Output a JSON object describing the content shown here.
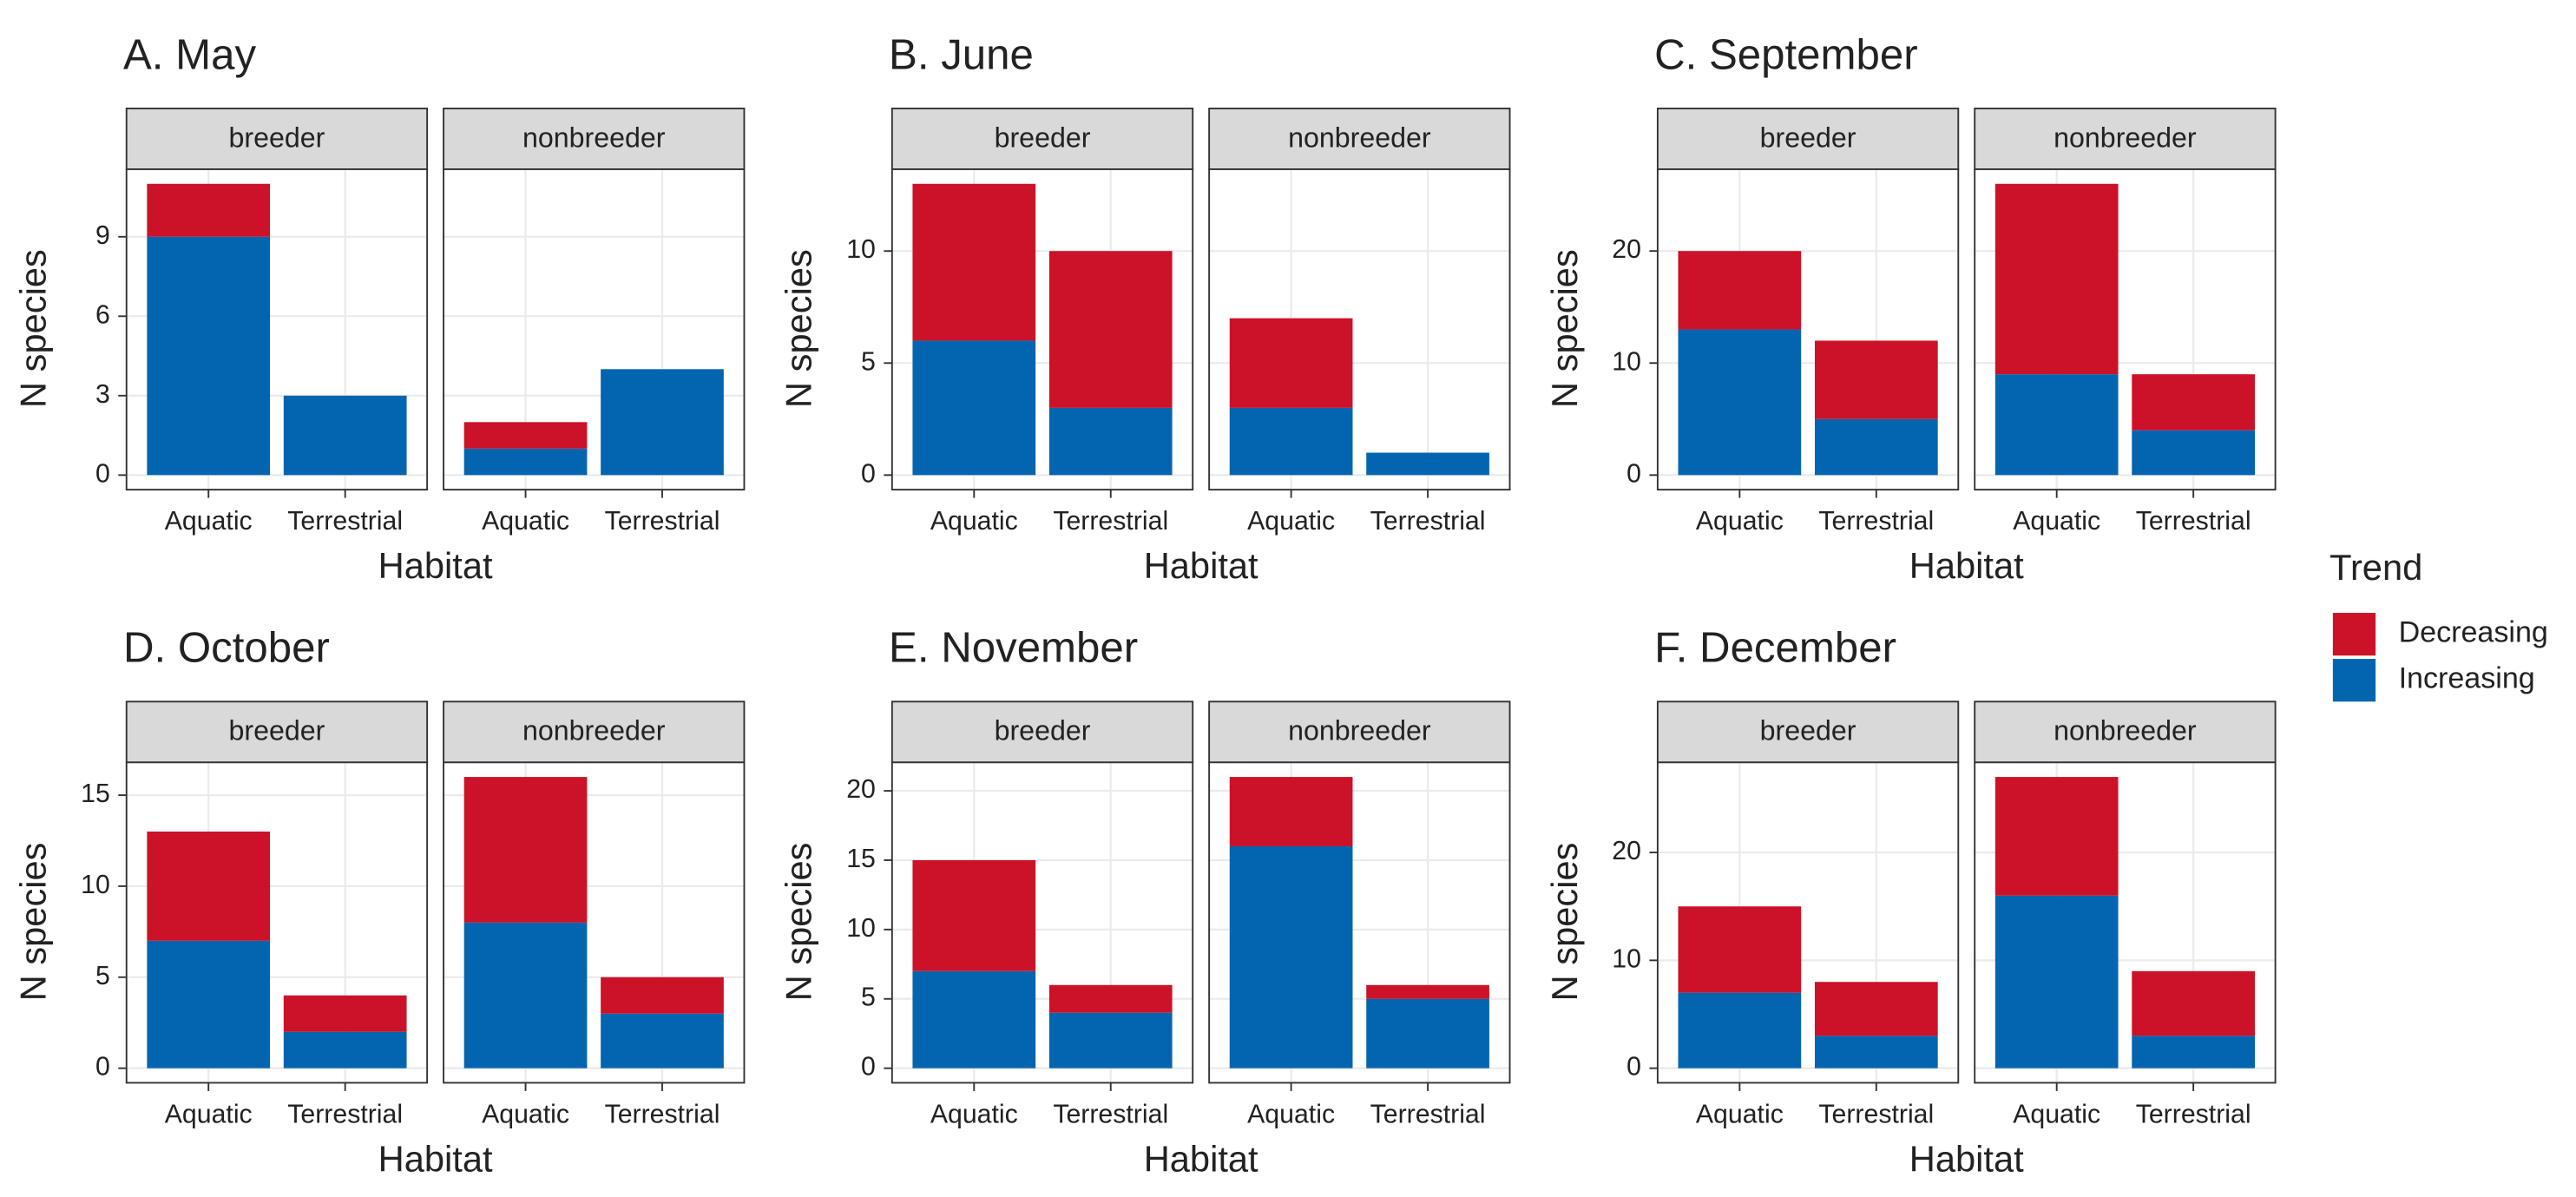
{
  "legend": {
    "title": "Trend"
  },
  "chart_data": [
    {
      "type": "bar",
      "stacked": true,
      "title": "A. May",
      "xlabel": "Habitat",
      "ylabel": "N species",
      "facets": [
        "breeder",
        "nonbreeder"
      ],
      "categories": [
        "Aquatic",
        "Terrestrial"
      ],
      "ylim": [
        -0.55,
        11.55
      ],
      "yticks": [
        0,
        3,
        6,
        9
      ],
      "grid": true,
      "series": [
        {
          "name": "Decreasing",
          "color": "#cb1228",
          "values": [
            [
              2,
              0
            ],
            [
              1,
              0
            ]
          ]
        },
        {
          "name": "Increasing",
          "color": "#0365b0",
          "values": [
            [
              9,
              3
            ],
            [
              1,
              4
            ]
          ]
        }
      ]
    },
    {
      "type": "bar",
      "stacked": true,
      "title": "B. June",
      "xlabel": "Habitat",
      "ylabel": "N species",
      "facets": [
        "breeder",
        "nonbreeder"
      ],
      "categories": [
        "Aquatic",
        "Terrestrial"
      ],
      "ylim": [
        -0.65,
        13.65
      ],
      "yticks": [
        0,
        5,
        10
      ],
      "grid": true,
      "series": [
        {
          "name": "Decreasing",
          "color": "#cb1228",
          "values": [
            [
              7,
              7
            ],
            [
              4,
              0
            ]
          ]
        },
        {
          "name": "Increasing",
          "color": "#0365b0",
          "values": [
            [
              6,
              3
            ],
            [
              3,
              1
            ]
          ]
        }
      ]
    },
    {
      "type": "bar",
      "stacked": true,
      "title": "C. September",
      "xlabel": "Habitat",
      "ylabel": "N species",
      "facets": [
        "breeder",
        "nonbreeder"
      ],
      "categories": [
        "Aquatic",
        "Terrestrial"
      ],
      "ylim": [
        -1.3,
        27.3
      ],
      "yticks": [
        0,
        10,
        20
      ],
      "grid": true,
      "series": [
        {
          "name": "Decreasing",
          "color": "#cb1228",
          "values": [
            [
              7,
              7
            ],
            [
              17,
              5
            ]
          ]
        },
        {
          "name": "Increasing",
          "color": "#0365b0",
          "values": [
            [
              13,
              5
            ],
            [
              9,
              4
            ]
          ]
        }
      ]
    },
    {
      "type": "bar",
      "stacked": true,
      "title": "D. October",
      "xlabel": "Habitat",
      "ylabel": "N species",
      "facets": [
        "breeder",
        "nonbreeder"
      ],
      "categories": [
        "Aquatic",
        "Terrestrial"
      ],
      "ylim": [
        -0.8,
        16.8
      ],
      "yticks": [
        0,
        5,
        10,
        15
      ],
      "grid": true,
      "series": [
        {
          "name": "Decreasing",
          "color": "#cb1228",
          "values": [
            [
              6,
              2
            ],
            [
              8,
              2
            ]
          ]
        },
        {
          "name": "Increasing",
          "color": "#0365b0",
          "values": [
            [
              7,
              2
            ],
            [
              8,
              3
            ]
          ]
        }
      ]
    },
    {
      "type": "bar",
      "stacked": true,
      "title": "E. November",
      "xlabel": "Habitat",
      "ylabel": "N species",
      "facets": [
        "breeder",
        "nonbreeder"
      ],
      "categories": [
        "Aquatic",
        "Terrestrial"
      ],
      "ylim": [
        -1.05,
        22.05
      ],
      "yticks": [
        0,
        5,
        10,
        15,
        20
      ],
      "grid": true,
      "series": [
        {
          "name": "Decreasing",
          "color": "#cb1228",
          "values": [
            [
              8,
              2
            ],
            [
              5,
              1
            ]
          ]
        },
        {
          "name": "Increasing",
          "color": "#0365b0",
          "values": [
            [
              7,
              4
            ],
            [
              16,
              5
            ]
          ]
        }
      ]
    },
    {
      "type": "bar",
      "stacked": true,
      "title": "F. December",
      "xlabel": "Habitat",
      "ylabel": "N species",
      "facets": [
        "breeder",
        "nonbreeder"
      ],
      "categories": [
        "Aquatic",
        "Terrestrial"
      ],
      "ylim": [
        -1.35,
        28.35
      ],
      "yticks": [
        0,
        10,
        20
      ],
      "grid": true,
      "series": [
        {
          "name": "Decreasing",
          "color": "#cb1228",
          "values": [
            [
              8,
              5
            ],
            [
              11,
              6
            ]
          ]
        },
        {
          "name": "Increasing",
          "color": "#0365b0",
          "values": [
            [
              7,
              3
            ],
            [
              16,
              3
            ]
          ]
        }
      ]
    }
  ]
}
